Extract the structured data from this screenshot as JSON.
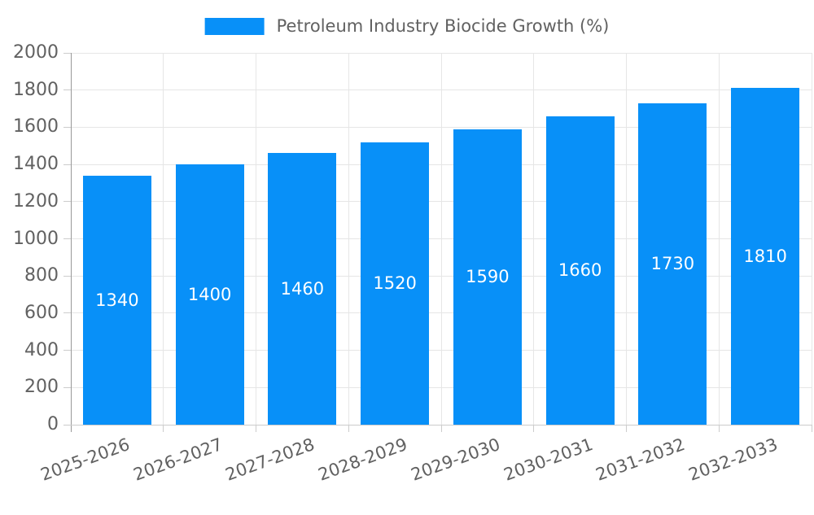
{
  "chart_data": {
    "type": "bar",
    "title": "Petroleum Industry Biocide Growth (%)",
    "legend": {
      "position": "top",
      "label": "Petroleum Industry Biocide Growth (%)"
    },
    "categories": [
      "2025-2026",
      "2026-2027",
      "2027-2028",
      "2028-2029",
      "2029-2030",
      "2030-2031",
      "2031-2032",
      "2032-2033"
    ],
    "values": [
      1340,
      1400,
      1460,
      1520,
      1590,
      1660,
      1730,
      1810
    ],
    "value_labels": [
      "1340",
      "1400",
      "1460",
      "1520",
      "1590",
      "1660",
      "1730",
      "1810"
    ],
    "xlabel": "",
    "ylabel": "",
    "ylim": [
      0,
      2000
    ],
    "ytick_step": 200,
    "ytick_labels": [
      "0",
      "200",
      "400",
      "600",
      "800",
      "1000",
      "1200",
      "1400",
      "1600",
      "1800",
      "2000"
    ],
    "grid": true,
    "x_label_rotation_deg": -20,
    "colors": {
      "bar": "#0890f8",
      "grid": "#e6e6e6",
      "axis_line": "#999999",
      "baseline": "#cccccc",
      "tick": "#cccccc",
      "axis_text": "#616161",
      "value_text": "#ffffff",
      "background": "#ffffff"
    }
  }
}
